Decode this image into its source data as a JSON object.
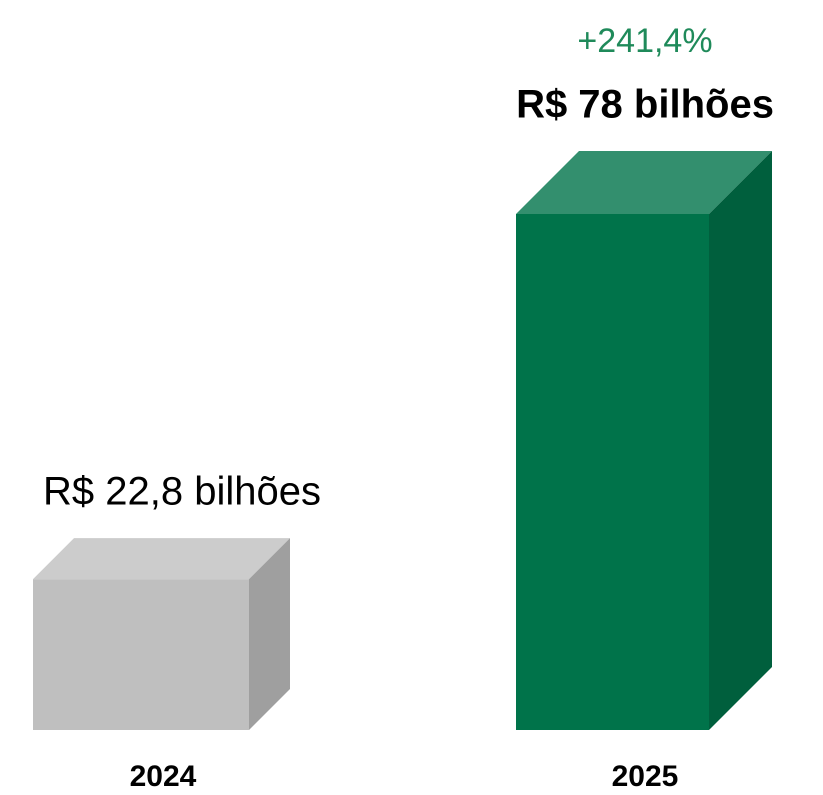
{
  "chart_data": {
    "type": "bar3d",
    "categories": [
      "2024",
      "2025"
    ],
    "values": [
      22.8,
      78
    ],
    "value_labels": [
      "R$ 22,8 bilhões",
      "R$ 78 bilhões"
    ],
    "colors": [
      "#bfbfbf",
      "#00734a"
    ],
    "annotation": "+241,4%"
  }
}
